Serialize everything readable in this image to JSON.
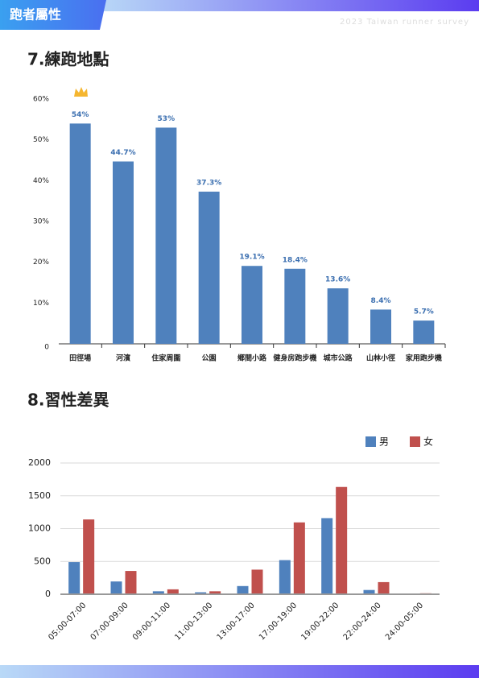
{
  "header": {
    "tag": "跑者屬性",
    "subtitle": "2023 Taiwan runner survey"
  },
  "chart_data": [
    {
      "type": "bar",
      "title": "7.練跑地點",
      "categories": [
        "田徑場",
        "河濱",
        "住家周圍",
        "公園",
        "鄉間小路",
        "健身房跑步機",
        "城市公路",
        "山林小徑",
        "家用跑步機"
      ],
      "values": [
        54,
        44.7,
        53,
        37.3,
        19.1,
        18.4,
        13.6,
        8.4,
        5.7
      ],
      "value_labels": [
        "54%",
        "44.7%",
        "53%",
        "37.3%",
        "19.1%",
        "18.4%",
        "13.6%",
        "8.4%",
        "5.7%"
      ],
      "color": "#4f81bd",
      "ylim": [
        0,
        60
      ],
      "yticks": [
        0,
        {
          "value": 10,
          "label": "10%"
        },
        {
          "value": 20,
          "label": "20%"
        },
        {
          "value": 30,
          "label": "30%"
        },
        {
          "value": 40,
          "label": "40%"
        },
        {
          "value": 50,
          "label": "50%"
        },
        {
          "value": 60,
          "label": "60%"
        }
      ],
      "grid": false
    },
    {
      "type": "grouped-bar",
      "title": "8.習性差異",
      "categories": [
        "05:00-07:00",
        "07:00-09:00",
        "09:00-11:00",
        "11:00-13:00",
        "13:00-17:00",
        "17:00-19:00",
        "19:00-22:00",
        "22:00-24:00",
        "24:00-05:00"
      ],
      "series": [
        {
          "name": "男",
          "color": "#4f81bd",
          "values": [
            490,
            195,
            45,
            30,
            125,
            520,
            1160,
            65,
            10
          ]
        },
        {
          "name": "女",
          "color": "#c0504d",
          "values": [
            1140,
            355,
            75,
            45,
            375,
            1095,
            1635,
            185,
            15
          ]
        }
      ],
      "ylim": [
        0,
        2000
      ],
      "yticks": [
        0,
        500,
        1000,
        1500,
        2000
      ],
      "grid": true,
      "legend": "top-right"
    }
  ]
}
